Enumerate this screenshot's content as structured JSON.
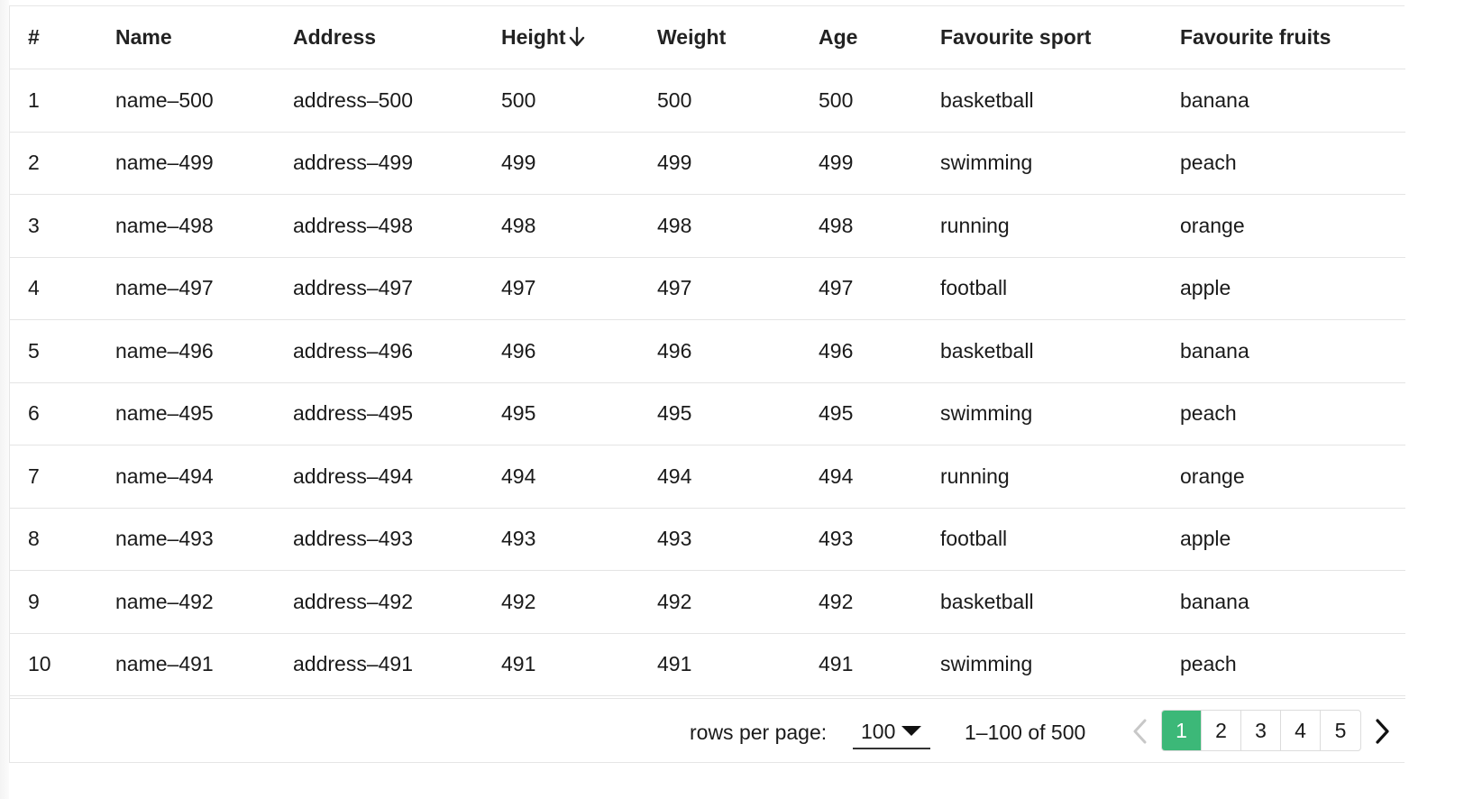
{
  "table": {
    "columns": [
      "#",
      "Name",
      "Address",
      "Height",
      "Weight",
      "Age",
      "Favourite sport",
      "Favourite fruits"
    ],
    "sort": {
      "column": "Height",
      "direction": "descending"
    },
    "rows": [
      [
        "1",
        "name–500",
        "address–500",
        "500",
        "500",
        "500",
        "basketball",
        "banana"
      ],
      [
        "2",
        "name–499",
        "address–499",
        "499",
        "499",
        "499",
        "swimming",
        "peach"
      ],
      [
        "3",
        "name–498",
        "address–498",
        "498",
        "498",
        "498",
        "running",
        "orange"
      ],
      [
        "4",
        "name–497",
        "address–497",
        "497",
        "497",
        "497",
        "football",
        "apple"
      ],
      [
        "5",
        "name–496",
        "address–496",
        "496",
        "496",
        "496",
        "basketball",
        "banana"
      ],
      [
        "6",
        "name–495",
        "address–495",
        "495",
        "495",
        "495",
        "swimming",
        "peach"
      ],
      [
        "7",
        "name–494",
        "address–494",
        "494",
        "494",
        "494",
        "running",
        "orange"
      ],
      [
        "8",
        "name–493",
        "address–493",
        "493",
        "493",
        "493",
        "football",
        "apple"
      ],
      [
        "9",
        "name–492",
        "address–492",
        "492",
        "492",
        "492",
        "basketball",
        "banana"
      ],
      [
        "10",
        "name–491",
        "address–491",
        "491",
        "491",
        "491",
        "swimming",
        "peach"
      ]
    ]
  },
  "footer": {
    "rows_per_page_label": "rows per page:",
    "rows_per_page_value": "100",
    "range_text": "1–100 of 500",
    "pages": [
      "1",
      "2",
      "3",
      "4",
      "5"
    ],
    "active_page": "1"
  },
  "icons": {
    "sort": "arrow-down-icon",
    "prev": "chevron-left-icon",
    "next": "chevron-right-icon",
    "dropdown": "caret-down-icon"
  },
  "colors": {
    "accent": "#3cb878",
    "border": "#e4e4e4",
    "disabled": "#c8c8c8"
  }
}
